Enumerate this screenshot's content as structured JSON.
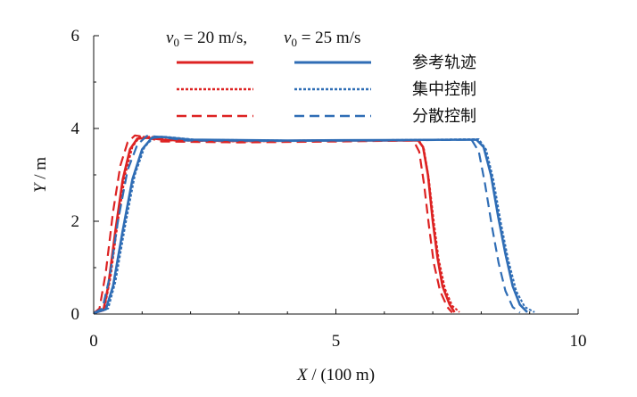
{
  "chart_data": {
    "type": "line",
    "xlabel": {
      "var": "X",
      "unit": " / (100 m)"
    },
    "ylabel": {
      "var": "Y",
      "unit": " / m"
    },
    "xlim": [
      0,
      10
    ],
    "ylim": [
      0,
      6
    ],
    "xticks": [
      "0",
      "5",
      "10"
    ],
    "yticks": [
      "0",
      "2",
      "4",
      "6"
    ],
    "legend": {
      "placement": "top",
      "columns": [
        {
          "head": "v0 = 20 m/s,",
          "head_var": "v",
          "head_sub": "0",
          "head_rest": " = 20 m/s,",
          "color": "#dd2222"
        },
        {
          "head": "v0 = 25 m/s",
          "head_var": "v",
          "head_sub": "0",
          "head_rest": " = 25 m/s",
          "color": "#2f6db5"
        }
      ],
      "rows": [
        {
          "label": "参考轨迹",
          "style": "solid"
        },
        {
          "label": "集中控制",
          "style": "dotted"
        },
        {
          "label": "分散控制",
          "style": "dashed"
        }
      ]
    },
    "series": [
      {
        "group": "20",
        "style": "solid",
        "color": "#dd2222",
        "points": [
          [
            0,
            0.02
          ],
          [
            0.2,
            0.08
          ],
          [
            0.3,
            0.6
          ],
          [
            0.45,
            1.8
          ],
          [
            0.6,
            2.9
          ],
          [
            0.75,
            3.55
          ],
          [
            0.9,
            3.78
          ],
          [
            1.1,
            3.8
          ],
          [
            1.5,
            3.75
          ],
          [
            3,
            3.73
          ],
          [
            5,
            3.74
          ],
          [
            6.7,
            3.74
          ],
          [
            6.8,
            3.6
          ],
          [
            6.9,
            3.0
          ],
          [
            7.0,
            2.0
          ],
          [
            7.1,
            1.2
          ],
          [
            7.2,
            0.6
          ],
          [
            7.35,
            0.2
          ],
          [
            7.45,
            0.04
          ]
        ]
      },
      {
        "group": "20",
        "style": "dotted",
        "color": "#dd2222",
        "points": [
          [
            0,
            0.02
          ],
          [
            0.22,
            0.1
          ],
          [
            0.35,
            0.8
          ],
          [
            0.5,
            2.0
          ],
          [
            0.65,
            3.0
          ],
          [
            0.8,
            3.6
          ],
          [
            0.95,
            3.82
          ],
          [
            1.2,
            3.82
          ],
          [
            1.6,
            3.74
          ],
          [
            3,
            3.72
          ],
          [
            5,
            3.74
          ],
          [
            6.72,
            3.74
          ],
          [
            6.82,
            3.55
          ],
          [
            6.92,
            2.9
          ],
          [
            7.02,
            2.0
          ],
          [
            7.12,
            1.2
          ],
          [
            7.25,
            0.55
          ],
          [
            7.4,
            0.18
          ],
          [
            7.55,
            0.04
          ]
        ]
      },
      {
        "group": "20",
        "style": "dashed",
        "color": "#dd2222",
        "points": [
          [
            0,
            0.02
          ],
          [
            0.12,
            0.12
          ],
          [
            0.25,
            0.9
          ],
          [
            0.4,
            2.2
          ],
          [
            0.55,
            3.2
          ],
          [
            0.7,
            3.7
          ],
          [
            0.85,
            3.85
          ],
          [
            1.05,
            3.82
          ],
          [
            1.4,
            3.72
          ],
          [
            3,
            3.7
          ],
          [
            5,
            3.72
          ],
          [
            6.6,
            3.74
          ],
          [
            6.72,
            3.5
          ],
          [
            6.82,
            2.8
          ],
          [
            6.92,
            1.9
          ],
          [
            7.02,
            1.1
          ],
          [
            7.15,
            0.5
          ],
          [
            7.3,
            0.15
          ],
          [
            7.4,
            0.03
          ]
        ]
      },
      {
        "group": "25",
        "style": "solid",
        "color": "#2f6db5",
        "points": [
          [
            0,
            0.02
          ],
          [
            0.25,
            0.1
          ],
          [
            0.4,
            0.6
          ],
          [
            0.6,
            1.8
          ],
          [
            0.8,
            2.9
          ],
          [
            1.0,
            3.55
          ],
          [
            1.2,
            3.8
          ],
          [
            1.4,
            3.82
          ],
          [
            2,
            3.76
          ],
          [
            4,
            3.74
          ],
          [
            6,
            3.75
          ],
          [
            7.9,
            3.76
          ],
          [
            8.05,
            3.6
          ],
          [
            8.2,
            3.0
          ],
          [
            8.35,
            2.1
          ],
          [
            8.5,
            1.3
          ],
          [
            8.65,
            0.6
          ],
          [
            8.8,
            0.2
          ],
          [
            8.95,
            0.04
          ]
        ]
      },
      {
        "group": "25",
        "style": "dotted",
        "color": "#2f6db5",
        "points": [
          [
            0,
            0.02
          ],
          [
            0.3,
            0.12
          ],
          [
            0.45,
            0.7
          ],
          [
            0.65,
            1.9
          ],
          [
            0.85,
            3.0
          ],
          [
            1.05,
            3.6
          ],
          [
            1.25,
            3.82
          ],
          [
            1.5,
            3.82
          ],
          [
            2.1,
            3.76
          ],
          [
            4,
            3.74
          ],
          [
            6,
            3.75
          ],
          [
            7.95,
            3.77
          ],
          [
            8.1,
            3.55
          ],
          [
            8.25,
            2.9
          ],
          [
            8.4,
            2.0
          ],
          [
            8.55,
            1.2
          ],
          [
            8.72,
            0.5
          ],
          [
            8.9,
            0.15
          ],
          [
            9.1,
            0.04
          ]
        ]
      },
      {
        "group": "25",
        "style": "dashed",
        "color": "#2f6db5",
        "points": [
          [
            0,
            0.02
          ],
          [
            0.18,
            0.12
          ],
          [
            0.33,
            0.8
          ],
          [
            0.5,
            2.0
          ],
          [
            0.7,
            3.1
          ],
          [
            0.9,
            3.65
          ],
          [
            1.1,
            3.84
          ],
          [
            1.35,
            3.82
          ],
          [
            1.9,
            3.74
          ],
          [
            4,
            3.73
          ],
          [
            6,
            3.74
          ],
          [
            7.8,
            3.76
          ],
          [
            7.95,
            3.5
          ],
          [
            8.08,
            2.8
          ],
          [
            8.22,
            1.9
          ],
          [
            8.36,
            1.1
          ],
          [
            8.5,
            0.5
          ],
          [
            8.65,
            0.15
          ],
          [
            8.8,
            0.03
          ]
        ]
      }
    ]
  }
}
